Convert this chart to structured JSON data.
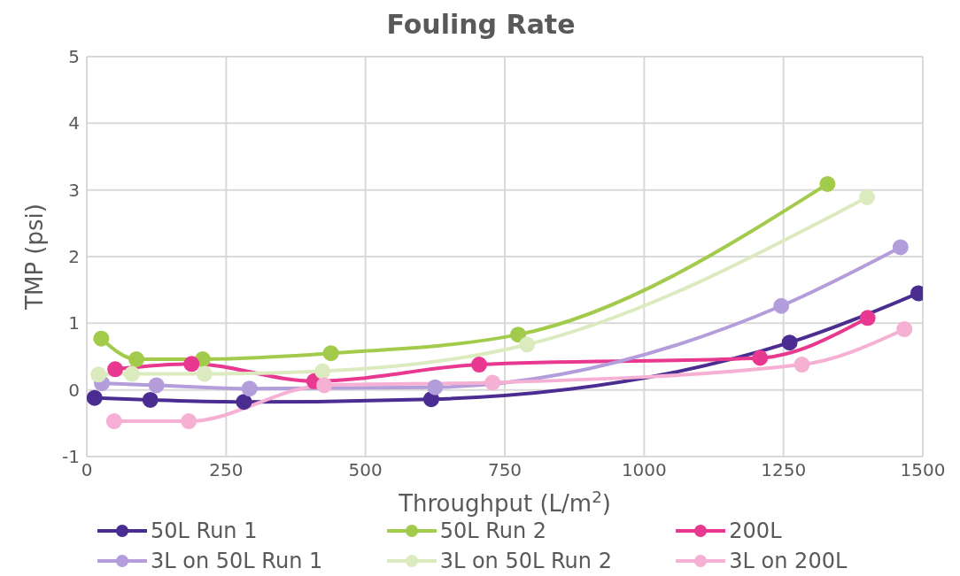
{
  "chart_data": {
    "type": "line",
    "title": "Fouling Rate",
    "xlabel": "Throughput (L/m$^{2}$)",
    "ylabel": "TMP (psi)",
    "xlim": [
      0,
      1500
    ],
    "xticks": [
      0,
      250,
      500,
      750,
      1000,
      1250,
      1500
    ],
    "ylim": [
      -1,
      5
    ],
    "yticks": [
      -1,
      0,
      1,
      2,
      3,
      4,
      5
    ],
    "grid": true,
    "legend": "bottom",
    "marker": "circle",
    "line_style": "solid",
    "series": [
      {
        "name": "50L Run 1",
        "color": "#4b2c91",
        "x": [
          14,
          114,
          282,
          618,
          1261,
          1492
        ],
        "values": [
          -0.12,
          -0.15,
          -0.18,
          -0.14,
          0.71,
          1.45
        ]
      },
      {
        "name": "50L Run 2",
        "color": "#a2cb4c",
        "x": [
          26,
          89,
          208,
          438,
          774,
          1329
        ],
        "values": [
          0.77,
          0.46,
          0.46,
          0.55,
          0.83,
          3.09
        ]
      },
      {
        "name": "200L",
        "color": "#e8388f",
        "x": [
          51,
          188,
          408,
          704,
          1208,
          1401
        ],
        "values": [
          0.31,
          0.39,
          0.13,
          0.38,
          0.48,
          1.08
        ]
      },
      {
        "name": "3L on 50L Run 1",
        "color": "#b39ddb",
        "x": [
          27,
          125,
          292,
          625,
          1246,
          1460
        ],
        "values": [
          0.1,
          0.07,
          0.02,
          0.04,
          1.26,
          2.14
        ]
      },
      {
        "name": "3L on 50L Run 2",
        "color": "#dcebbf",
        "x": [
          21,
          81,
          211,
          423,
          790,
          1400
        ],
        "values": [
          0.23,
          0.24,
          0.24,
          0.28,
          0.68,
          2.89
        ]
      },
      {
        "name": "3L on 200L",
        "color": "#f5b0d4",
        "x": [
          49,
          183,
          426,
          728,
          1283,
          1467
        ],
        "values": [
          -0.47,
          -0.47,
          0.07,
          0.11,
          0.38,
          0.91
        ]
      }
    ]
  }
}
